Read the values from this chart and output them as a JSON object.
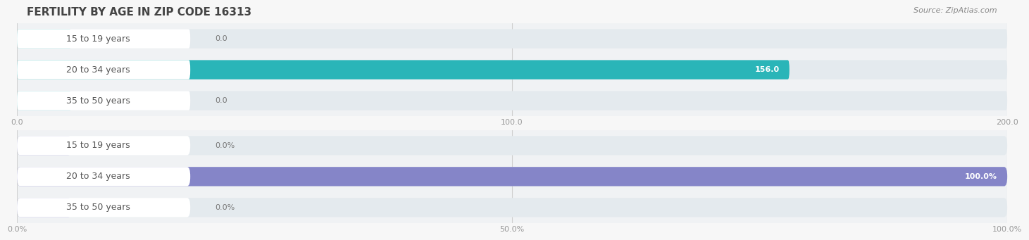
{
  "title": "FERTILITY BY AGE IN ZIP CODE 16313",
  "source": "Source: ZipAtlas.com",
  "categories": [
    "15 to 19 years",
    "20 to 34 years",
    "35 to 50 years"
  ],
  "abs_values": [
    0.0,
    156.0,
    0.0
  ],
  "pct_values": [
    0.0,
    100.0,
    0.0
  ],
  "abs_xlim": [
    0,
    200
  ],
  "pct_xlim": [
    0,
    100
  ],
  "abs_xticks": [
    0.0,
    100.0,
    200.0
  ],
  "pct_xticks": [
    0.0,
    50.0,
    100.0
  ],
  "abs_xtick_labels": [
    "0.0",
    "100.0",
    "200.0"
  ],
  "pct_xtick_labels": [
    "0.0%",
    "50.0%",
    "100.0%"
  ],
  "bar_color_teal": "#2ab5b8",
  "bar_color_teal_light": "#7dd4d6",
  "bar_color_purple": "#8585c8",
  "bar_color_purple_light": "#aaaad8",
  "bar_bg_color": "#e4eaee",
  "grid_color": "#d0d0d0",
  "title_fontsize": 11,
  "source_fontsize": 8,
  "label_fontsize": 9,
  "tick_fontsize": 8,
  "value_fontsize": 8,
  "fig_bg_color": "#f7f7f7",
  "subplot_bg_color": "#f0f2f4"
}
